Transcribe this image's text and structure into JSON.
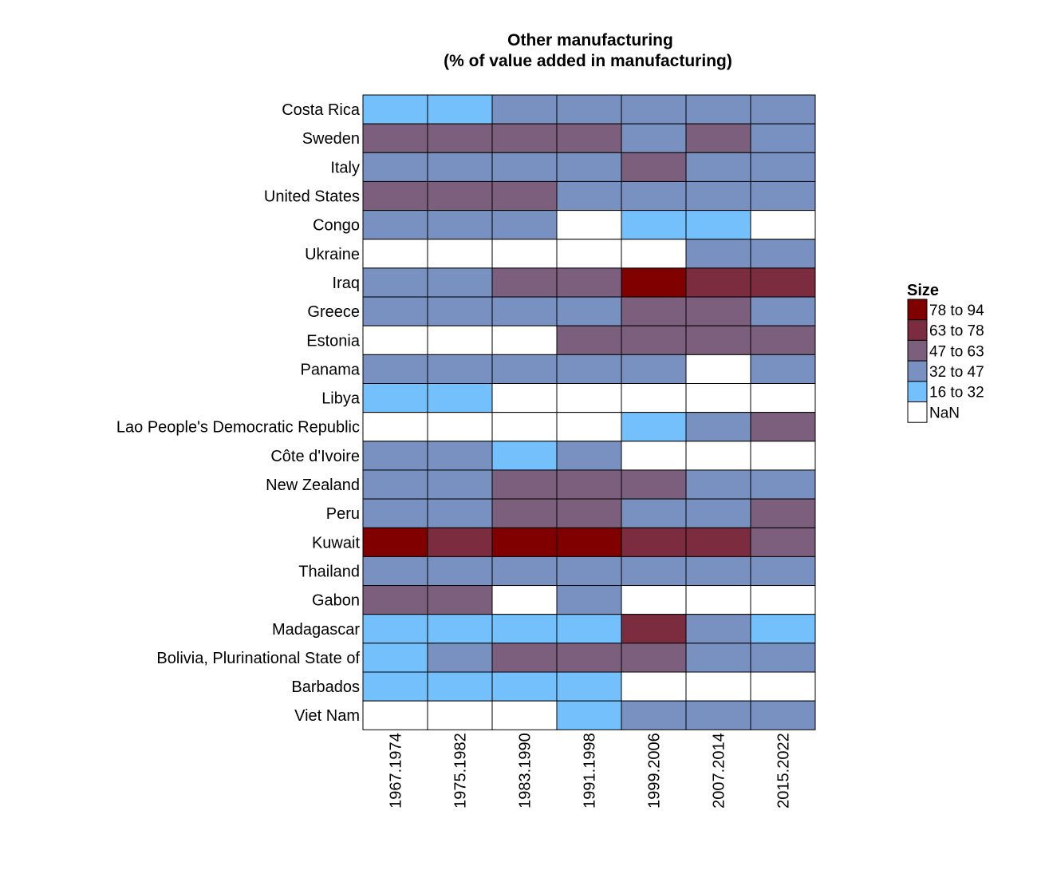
{
  "chart_data": {
    "type": "heatmap",
    "title_line1": "Other manufacturing",
    "title_line2": "(% of value added in manufacturing)",
    "rows": [
      "Costa Rica",
      "Sweden",
      "Italy",
      "United States",
      "Congo",
      "Ukraine",
      "Iraq",
      "Greece",
      "Estonia",
      "Panama",
      "Libya",
      "Lao People's Democratic Republic",
      "Côte d'Ivoire",
      "New Zealand",
      "Peru",
      "Kuwait",
      "Thailand",
      "Gabon",
      "Madagascar",
      "Bolivia, Plurinational State of",
      "Barbados",
      "Viet Nam"
    ],
    "columns": [
      "1967.1974",
      "1975.1982",
      "1983.1990",
      "1991.1998",
      "1999.2006",
      "2007.2014",
      "2015.2022"
    ],
    "legend_title": "Size",
    "legend": [
      {
        "label": "78 to 94",
        "color": "#800000"
      },
      {
        "label": "63 to 78",
        "color": "#7b2c3e"
      },
      {
        "label": "47 to 63",
        "color": "#7b5f7d"
      },
      {
        "label": "32 to 47",
        "color": "#7891c0"
      },
      {
        "label": "16 to 32",
        "color": "#74c0fc"
      },
      {
        "label": "NaN",
        "color": "#ffffff"
      }
    ],
    "cells": [
      [
        "16 to 32",
        "16 to 32",
        "32 to 47",
        "32 to 47",
        "32 to 47",
        "32 to 47",
        "32 to 47"
      ],
      [
        "47 to 63",
        "47 to 63",
        "47 to 63",
        "47 to 63",
        "32 to 47",
        "47 to 63",
        "32 to 47"
      ],
      [
        "32 to 47",
        "32 to 47",
        "32 to 47",
        "32 to 47",
        "47 to 63",
        "32 to 47",
        "32 to 47"
      ],
      [
        "47 to 63",
        "47 to 63",
        "47 to 63",
        "32 to 47",
        "32 to 47",
        "32 to 47",
        "32 to 47"
      ],
      [
        "32 to 47",
        "32 to 47",
        "32 to 47",
        "NaN",
        "16 to 32",
        "16 to 32",
        "NaN"
      ],
      [
        "NaN",
        "NaN",
        "NaN",
        "NaN",
        "NaN",
        "32 to 47",
        "32 to 47"
      ],
      [
        "32 to 47",
        "32 to 47",
        "47 to 63",
        "47 to 63",
        "78 to 94",
        "63 to 78",
        "63 to 78"
      ],
      [
        "32 to 47",
        "32 to 47",
        "32 to 47",
        "32 to 47",
        "47 to 63",
        "47 to 63",
        "32 to 47"
      ],
      [
        "NaN",
        "NaN",
        "NaN",
        "47 to 63",
        "47 to 63",
        "47 to 63",
        "47 to 63"
      ],
      [
        "32 to 47",
        "32 to 47",
        "32 to 47",
        "32 to 47",
        "32 to 47",
        "NaN",
        "32 to 47"
      ],
      [
        "16 to 32",
        "16 to 32",
        "NaN",
        "NaN",
        "NaN",
        "NaN",
        "NaN"
      ],
      [
        "NaN",
        "NaN",
        "NaN",
        "NaN",
        "16 to 32",
        "32 to 47",
        "47 to 63"
      ],
      [
        "32 to 47",
        "32 to 47",
        "16 to 32",
        "32 to 47",
        "NaN",
        "NaN",
        "NaN"
      ],
      [
        "32 to 47",
        "32 to 47",
        "47 to 63",
        "47 to 63",
        "47 to 63",
        "32 to 47",
        "32 to 47"
      ],
      [
        "32 to 47",
        "32 to 47",
        "47 to 63",
        "47 to 63",
        "32 to 47",
        "32 to 47",
        "47 to 63"
      ],
      [
        "78 to 94",
        "63 to 78",
        "78 to 94",
        "78 to 94",
        "63 to 78",
        "63 to 78",
        "47 to 63"
      ],
      [
        "32 to 47",
        "32 to 47",
        "32 to 47",
        "32 to 47",
        "32 to 47",
        "32 to 47",
        "32 to 47"
      ],
      [
        "47 to 63",
        "47 to 63",
        "NaN",
        "32 to 47",
        "NaN",
        "NaN",
        "NaN"
      ],
      [
        "16 to 32",
        "16 to 32",
        "16 to 32",
        "16 to 32",
        "63 to 78",
        "32 to 47",
        "16 to 32"
      ],
      [
        "16 to 32",
        "32 to 47",
        "47 to 63",
        "47 to 63",
        "47 to 63",
        "32 to 47",
        "32 to 47"
      ],
      [
        "16 to 32",
        "16 to 32",
        "16 to 32",
        "16 to 32",
        "NaN",
        "NaN",
        "NaN"
      ],
      [
        "NaN",
        "NaN",
        "NaN",
        "16 to 32",
        "32 to 47",
        "32 to 47",
        "32 to 47"
      ]
    ]
  }
}
